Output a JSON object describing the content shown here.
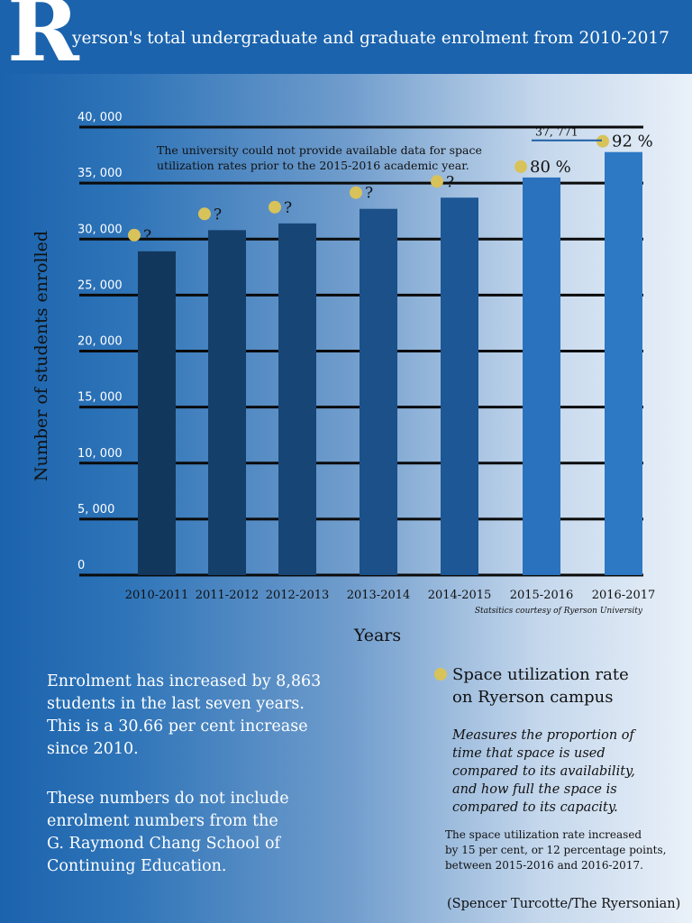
{
  "header": {
    "drop_cap": "R",
    "title": "yerson's total undergraduate and graduate enrolment from 2010-2017"
  },
  "colors": {
    "dot": "#d8c25a",
    "bars": [
      "#11375c",
      "#153f6b",
      "#174676",
      "#1b5088",
      "#1d5796",
      "#2a72bd",
      "#2d79c4"
    ]
  },
  "chart_data": {
    "type": "bar",
    "title": "yerson's total undergraduate and graduate enrolment from 2010-2017",
    "xlabel": "Years",
    "ylabel": "Number of students enrolled",
    "ylim": [
      0,
      40000
    ],
    "yticks": [
      0,
      5000,
      10000,
      15000,
      20000,
      25000,
      30000,
      35000,
      40000
    ],
    "ytick_labels": [
      "0",
      "5, 000",
      "10, 000",
      "15, 000",
      "20, 000",
      "25, 000",
      "30, 000",
      "35, 000",
      "40, 000"
    ],
    "grid": true,
    "categories": [
      "2010-2011",
      "2011-2012",
      "2012-2013",
      "2013-2014",
      "2014-2015",
      "2015-2016",
      "2016-2017"
    ],
    "values": [
      28908,
      30800,
      31400,
      32700,
      33700,
      35500,
      37771
    ],
    "space_utilization": [
      "?",
      "?",
      "?",
      "?",
      "?",
      "80 %",
      "92 %"
    ],
    "data_labels": [
      {
        "category": "2016-2017",
        "text": "37, 771"
      }
    ],
    "annotation": [
      "The university could not provide available data for  space",
      "utilization rates prior to the 2015-2016 academic year."
    ],
    "source": "Statsitics courtesy of Ryerson University"
  },
  "summary": {
    "lines_1": [
      "Enrolment has increased by 8,863",
      "students in the last seven years.",
      "This is a 30.66 per cent increase",
      "since 2010."
    ],
    "lines_2": [
      "These numbers do not include",
      "enrolment numbers from the",
      "G. Raymond Chang School of",
      "Continuing Education."
    ]
  },
  "legend": {
    "label_line1": "Space utilization rate",
    "label_line2": "on Ryerson campus",
    "description": [
      "Measures the proportion of",
      "time that space is used",
      "compared to its availability,",
      "and how full the space is",
      "compared to its capacity."
    ],
    "increase_note": [
      "The space utilization rate increased",
      "by 15 per cent, or 12 percentage points,",
      "between 2015-2016 and 2016-2017."
    ]
  },
  "byline": "(Spencer Turcotte/The Ryersonian)"
}
